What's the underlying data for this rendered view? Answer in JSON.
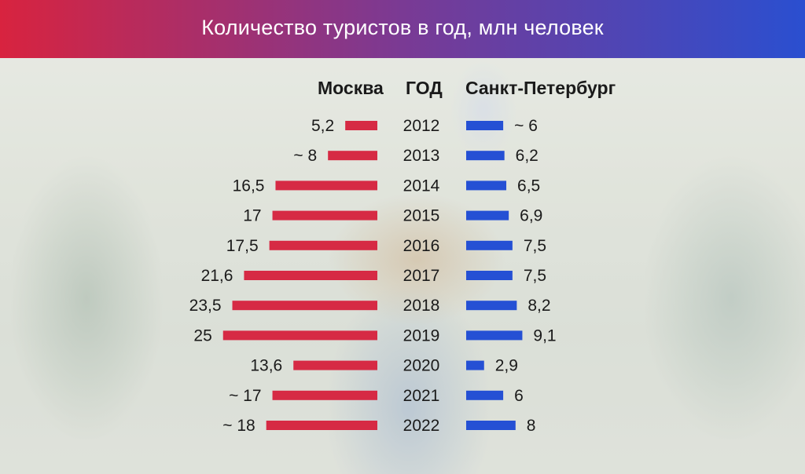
{
  "header": {
    "title": "Количество туристов в год, млн человек"
  },
  "columns": {
    "moscow": "Москва",
    "year": "ГОД",
    "spb": "Санкт-Петербург"
  },
  "colors": {
    "moscow": "#d62a44",
    "spb": "#2550d4",
    "header_left": "#d8233f",
    "header_right": "#2a4fd0"
  },
  "chart_data": {
    "type": "bar",
    "categories": [
      "2012",
      "2013",
      "2014",
      "2015",
      "2016",
      "2017",
      "2018",
      "2019",
      "2020",
      "2021",
      "2022"
    ],
    "series": [
      {
        "name": "Москва",
        "values": [
          5.2,
          8,
          16.5,
          17,
          17.5,
          21.6,
          23.5,
          25,
          13.6,
          17,
          18
        ],
        "labels": [
          "5,2",
          "~ 8",
          "16,5",
          "17",
          "17,5",
          "21,6",
          "23,5",
          "25",
          "13,6",
          "~ 17",
          "~ 18"
        ]
      },
      {
        "name": "Санкт-Петербург",
        "values": [
          6,
          6.2,
          6.5,
          6.9,
          7.5,
          7.5,
          8.2,
          9.1,
          2.9,
          6,
          8
        ],
        "labels": [
          "~ 6",
          "6,2",
          "6,5",
          "6,9",
          "7,5",
          "7,5",
          "8,2",
          "9,1",
          "2,9",
          "6",
          "8"
        ]
      }
    ],
    "title": "Количество туристов в год, млн человек"
  }
}
